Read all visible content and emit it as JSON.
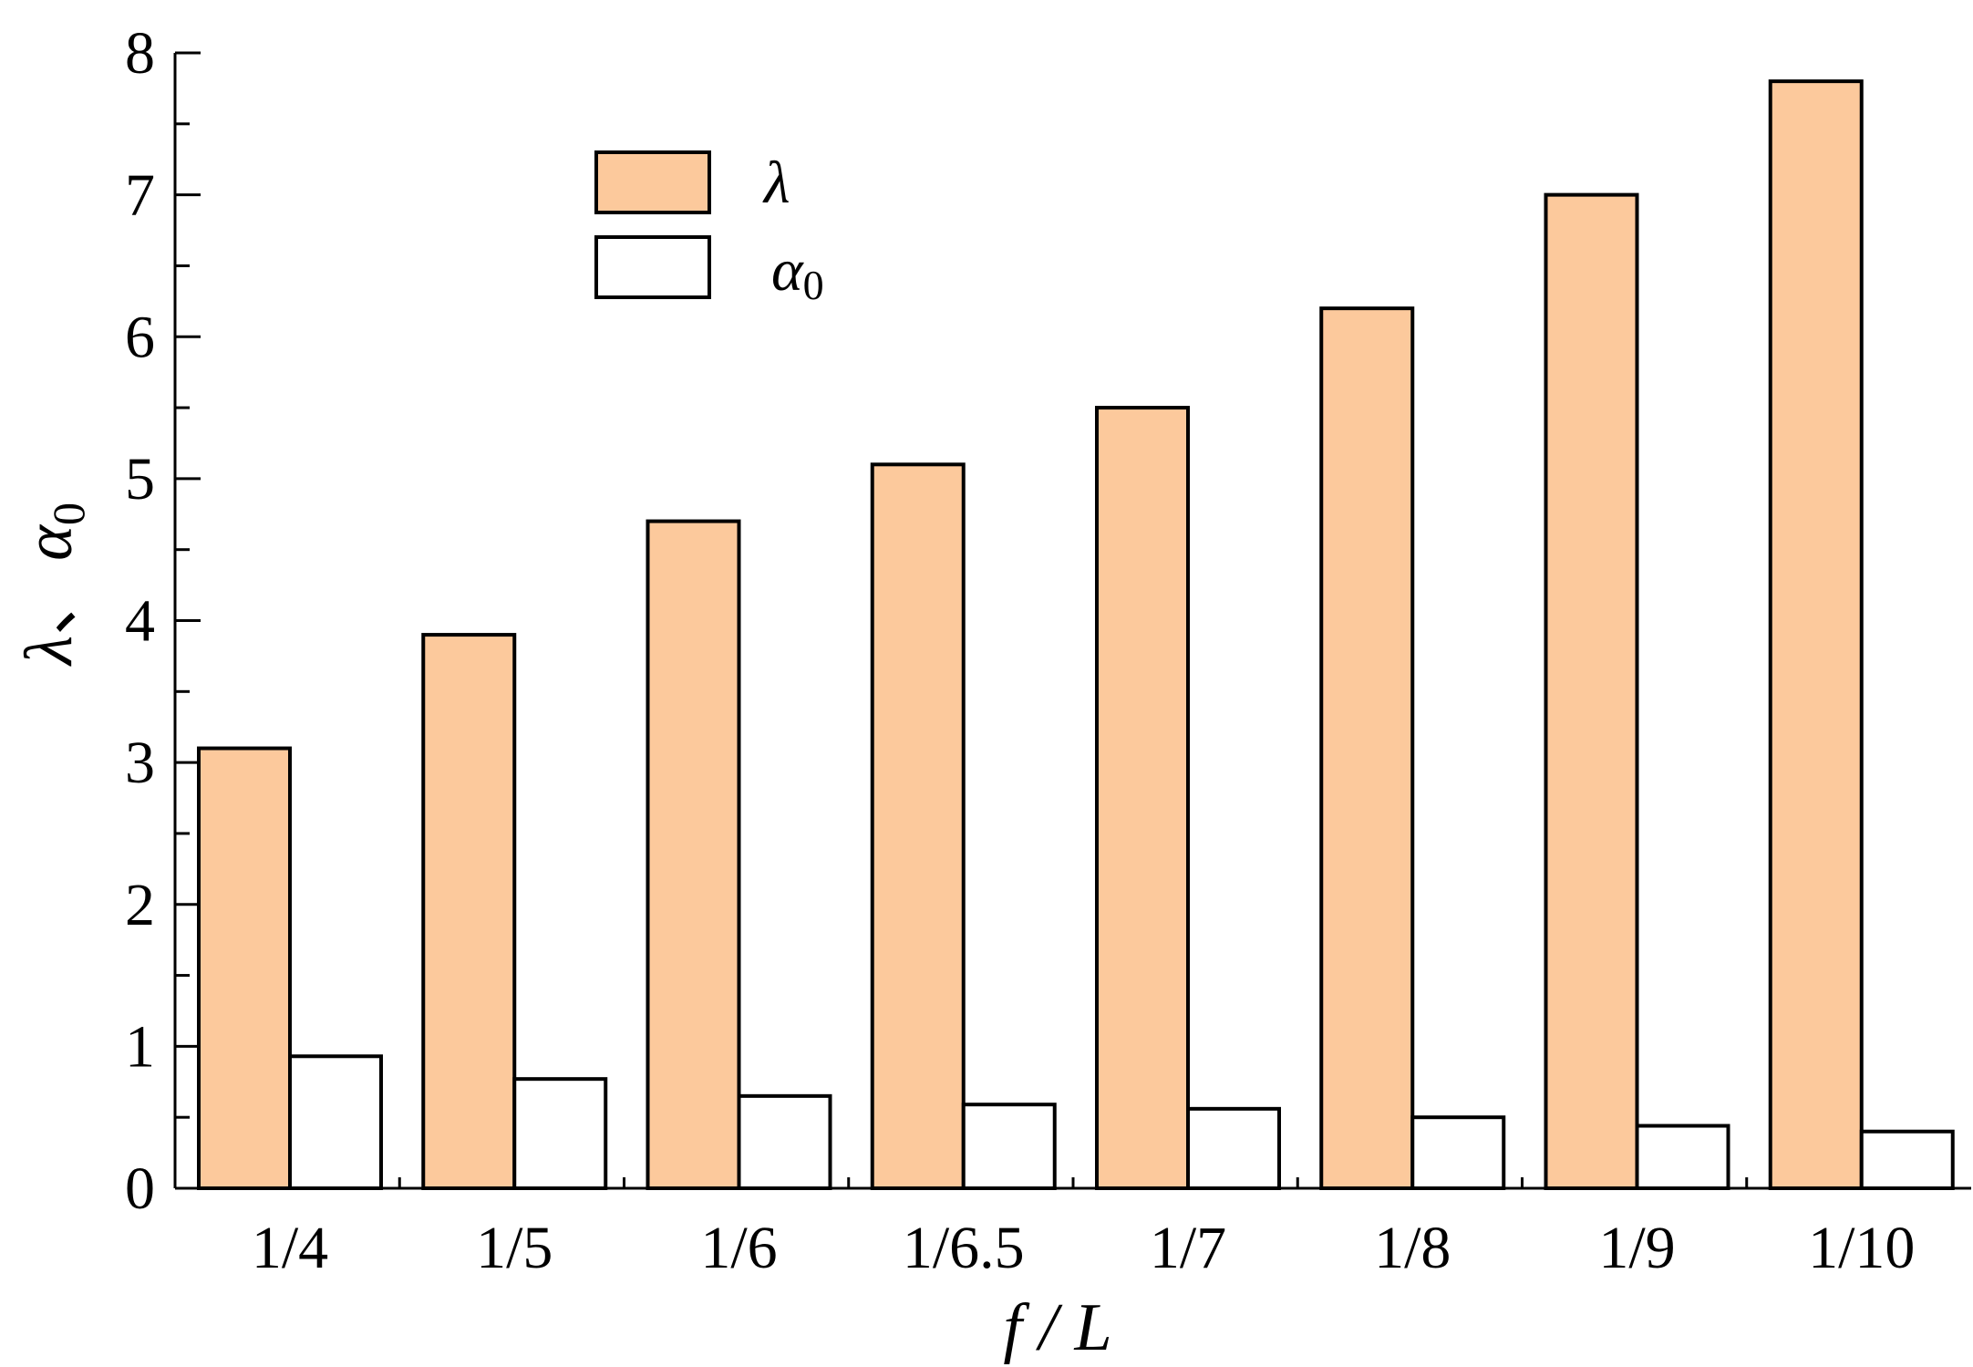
{
  "chart_data": {
    "type": "bar",
    "categories": [
      "1/4",
      "1/5",
      "1/6",
      "1/6.5",
      "1/7",
      "1/8",
      "1/9",
      "1/10"
    ],
    "series": [
      {
        "name": "λ",
        "values": [
          3.1,
          3.9,
          4.7,
          5.1,
          5.5,
          6.2,
          7.0,
          7.8
        ],
        "color": "#FCC99C"
      },
      {
        "name": "α0",
        "values": [
          0.93,
          0.77,
          0.65,
          0.59,
          0.56,
          0.5,
          0.44,
          0.4
        ],
        "color": "#FFFFFF"
      }
    ],
    "xlabel": "f / L",
    "ylabel": "λ、α0",
    "ylim": [
      0,
      8
    ],
    "yticks": [
      "0",
      "1",
      "2",
      "3",
      "4",
      "5",
      "6",
      "7",
      "8"
    ],
    "grid": false,
    "legend": "top-left"
  }
}
